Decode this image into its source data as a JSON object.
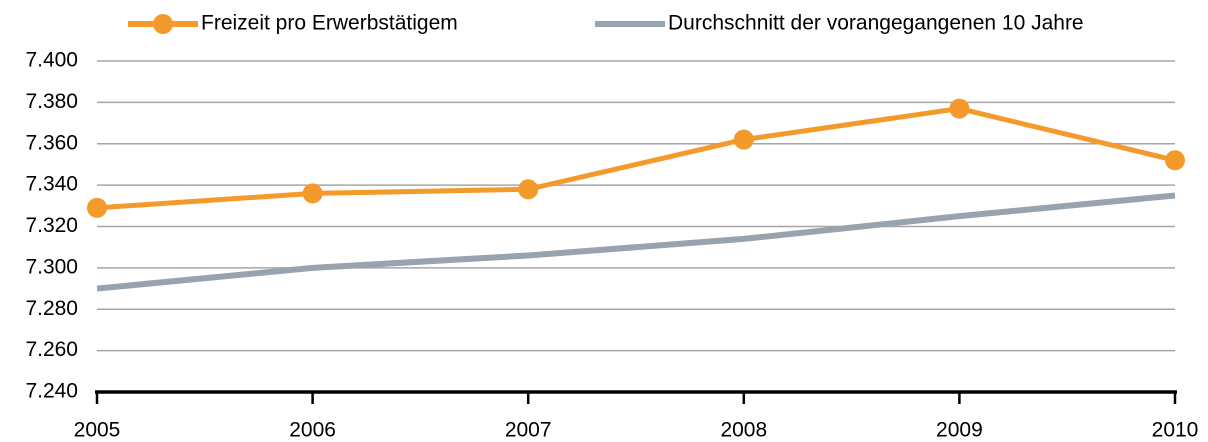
{
  "chart_data": {
    "type": "line",
    "categories": [
      "2005",
      "2006",
      "2007",
      "2008",
      "2009",
      "2010"
    ],
    "series": [
      {
        "name": "Freizeit pro Erwerbstätigem",
        "color": "#f39a2b",
        "values": [
          7329,
          7336,
          7338,
          7362,
          7377,
          7352
        ],
        "markers": true
      },
      {
        "name": "Durchschnitt der vorangegangenen 10 Jahre",
        "color": "#97a3ae",
        "values": [
          7290,
          7300,
          7306,
          7314,
          7325,
          7335
        ],
        "markers": false
      }
    ],
    "ylim": [
      7240,
      7400
    ],
    "yticks": [
      {
        "value": 7240,
        "label": "7.240"
      },
      {
        "value": 7260,
        "label": "7.260"
      },
      {
        "value": 7280,
        "label": "7.280"
      },
      {
        "value": 7300,
        "label": "7.300"
      },
      {
        "value": 7320,
        "label": "7.320"
      },
      {
        "value": 7340,
        "label": "7.340"
      },
      {
        "value": 7360,
        "label": "7.360"
      },
      {
        "value": 7380,
        "label": "7.380"
      },
      {
        "value": 7400,
        "label": "7.400"
      }
    ],
    "grid": true,
    "legend": "top"
  }
}
